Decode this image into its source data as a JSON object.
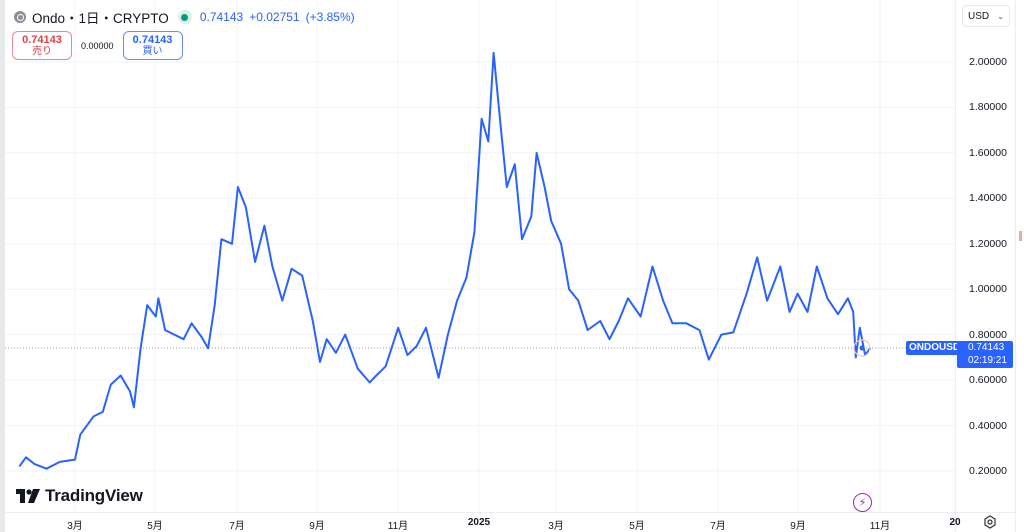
{
  "legend": {
    "symbol_icon": "coin-icon",
    "title": "Ondo・1日・CRYPTO",
    "status": "market-open-dot",
    "last": "0.74143",
    "change": "+0.02751",
    "change_pct": "(+3.85%)"
  },
  "trade": {
    "sell_price": "0.74143",
    "sell_label": "売り",
    "spread": "0.00000",
    "buy_price": "0.74143",
    "buy_label": "買い"
  },
  "currency": {
    "value": "USD",
    "chevron": "⌄"
  },
  "price_axis": {
    "labels": [
      "2.00000",
      "1.80000",
      "1.60000",
      "1.40000",
      "1.20000",
      "1.00000",
      "0.80000",
      "0.60000",
      "0.40000",
      "0.20000"
    ]
  },
  "time_axis": {
    "labels": [
      "3月",
      "5月",
      "7月",
      "9月",
      "11月",
      "2025",
      "3月",
      "5月",
      "7月",
      "9月",
      "11月",
      "20"
    ]
  },
  "current": {
    "symbol": "ONDOUSD",
    "price": "0.74143",
    "countdown": "02:19:21"
  },
  "branding": {
    "name": "TradingView",
    "logo": "tradingview-logo-icon"
  },
  "colors": {
    "line": "#2962ff",
    "sell": "#e2404c",
    "buy": "#2962ff",
    "positive": "#089981",
    "flash": "#9c27b0"
  },
  "chart_data": {
    "type": "line",
    "title": "Ondo・1日・CRYPTO",
    "series": [
      {
        "name": "ONDOUSD",
        "color": "#2962ff"
      }
    ],
    "xlabel": "",
    "ylabel": "USD",
    "ylim": [
      0.05,
      2.1
    ],
    "yticks": [
      0.2,
      0.4,
      0.6,
      0.8,
      1.0,
      1.2,
      1.4,
      1.6,
      1.8,
      2.0
    ],
    "xticks": [
      "3月",
      "5月",
      "7月",
      "9月",
      "11月",
      "2025",
      "3月",
      "5月",
      "7月",
      "9月",
      "11月",
      "20"
    ],
    "grid": true,
    "last_value": 0.74143,
    "points": [
      [
        "2024-01-20",
        0.22
      ],
      [
        "2024-01-25",
        0.26
      ],
      [
        "2024-02-01",
        0.23
      ],
      [
        "2024-02-10",
        0.21
      ],
      [
        "2024-02-20",
        0.24
      ],
      [
        "2024-03-01",
        0.25
      ],
      [
        "2024-03-05",
        0.36
      ],
      [
        "2024-03-15",
        0.44
      ],
      [
        "2024-03-22",
        0.46
      ],
      [
        "2024-03-28",
        0.58
      ],
      [
        "2024-04-05",
        0.62
      ],
      [
        "2024-04-12",
        0.55
      ],
      [
        "2024-04-15",
        0.48
      ],
      [
        "2024-04-20",
        0.74
      ],
      [
        "2024-04-25",
        0.93
      ],
      [
        "2024-05-01",
        0.88
      ],
      [
        "2024-05-03",
        0.96
      ],
      [
        "2024-05-08",
        0.82
      ],
      [
        "2024-05-15",
        0.8
      ],
      [
        "2024-05-22",
        0.78
      ],
      [
        "2024-05-28",
        0.85
      ],
      [
        "2024-06-05",
        0.79
      ],
      [
        "2024-06-10",
        0.74
      ],
      [
        "2024-06-15",
        0.93
      ],
      [
        "2024-06-20",
        1.22
      ],
      [
        "2024-06-28",
        1.2
      ],
      [
        "2024-07-02",
        1.45
      ],
      [
        "2024-07-08",
        1.36
      ],
      [
        "2024-07-15",
        1.12
      ],
      [
        "2024-07-22",
        1.28
      ],
      [
        "2024-07-28",
        1.1
      ],
      [
        "2024-08-05",
        0.95
      ],
      [
        "2024-08-12",
        1.09
      ],
      [
        "2024-08-20",
        1.06
      ],
      [
        "2024-08-28",
        0.86
      ],
      [
        "2024-09-03",
        0.68
      ],
      [
        "2024-09-08",
        0.78
      ],
      [
        "2024-09-15",
        0.72
      ],
      [
        "2024-09-22",
        0.8
      ],
      [
        "2024-10-01",
        0.65
      ],
      [
        "2024-10-10",
        0.59
      ],
      [
        "2024-10-15",
        0.62
      ],
      [
        "2024-10-22",
        0.66
      ],
      [
        "2024-11-01",
        0.83
      ],
      [
        "2024-11-08",
        0.71
      ],
      [
        "2024-11-15",
        0.75
      ],
      [
        "2024-11-22",
        0.83
      ],
      [
        "2024-12-01",
        0.61
      ],
      [
        "2024-12-08",
        0.8
      ],
      [
        "2024-12-15",
        0.95
      ],
      [
        "2024-12-22",
        1.05
      ],
      [
        "2024-12-28",
        1.25
      ],
      [
        "2025-01-03",
        1.75
      ],
      [
        "2025-01-08",
        1.65
      ],
      [
        "2025-01-12",
        2.04
      ],
      [
        "2025-01-18",
        1.68
      ],
      [
        "2025-01-22",
        1.45
      ],
      [
        "2025-01-28",
        1.55
      ],
      [
        "2025-02-03",
        1.22
      ],
      [
        "2025-02-10",
        1.32
      ],
      [
        "2025-02-14",
        1.6
      ],
      [
        "2025-02-20",
        1.45
      ],
      [
        "2025-02-25",
        1.3
      ],
      [
        "2025-03-02",
        1.2
      ],
      [
        "2025-03-08",
        1.0
      ],
      [
        "2025-03-15",
        0.95
      ],
      [
        "2025-03-22",
        0.82
      ],
      [
        "2025-04-01",
        0.86
      ],
      [
        "2025-04-08",
        0.78
      ],
      [
        "2025-04-15",
        0.86
      ],
      [
        "2025-04-22",
        0.96
      ],
      [
        "2025-05-01",
        0.88
      ],
      [
        "2025-05-10",
        1.1
      ],
      [
        "2025-05-18",
        0.95
      ],
      [
        "2025-05-25",
        0.85
      ],
      [
        "2025-06-05",
        0.85
      ],
      [
        "2025-06-15",
        0.82
      ],
      [
        "2025-06-22",
        0.69
      ],
      [
        "2025-07-01",
        0.8
      ],
      [
        "2025-07-10",
        0.81
      ],
      [
        "2025-07-20",
        0.98
      ],
      [
        "2025-07-28",
        1.14
      ],
      [
        "2025-08-05",
        0.95
      ],
      [
        "2025-08-15",
        1.1
      ],
      [
        "2025-08-22",
        0.9
      ],
      [
        "2025-08-28",
        0.98
      ],
      [
        "2025-09-05",
        0.9
      ],
      [
        "2025-09-12",
        1.1
      ],
      [
        "2025-09-20",
        0.96
      ],
      [
        "2025-09-28",
        0.89
      ],
      [
        "2025-10-05",
        0.96
      ],
      [
        "2025-10-09",
        0.9
      ],
      [
        "2025-10-11",
        0.7
      ],
      [
        "2025-10-14",
        0.83
      ],
      [
        "2025-10-18",
        0.71
      ],
      [
        "2025-10-22",
        0.74143
      ]
    ]
  }
}
